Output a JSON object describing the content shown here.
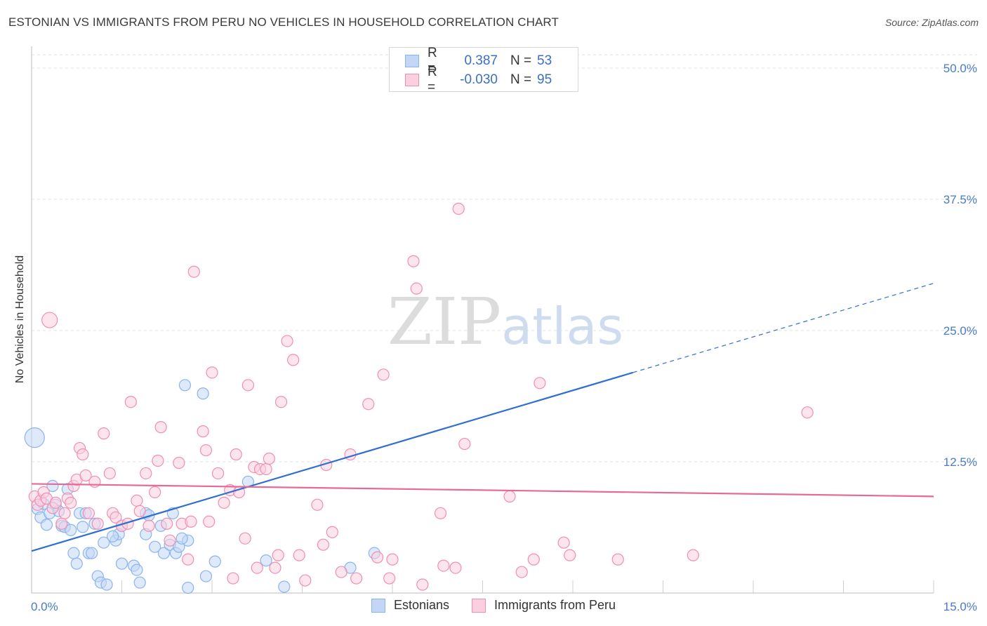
{
  "title": "ESTONIAN VS IMMIGRANTS FROM PERU NO VEHICLES IN HOUSEHOLD CORRELATION CHART",
  "source": "Source: ZipAtlas.com",
  "watermark": "ZIPatlas",
  "legend": {
    "rows": [
      {
        "r_label": "R =",
        "r_value": "0.387",
        "n_label": "N =",
        "n_value": "53",
        "color": "#8ab4ee",
        "fill": "#c3d7f5"
      },
      {
        "r_label": "R =",
        "r_value": "-0.030",
        "n_label": "N =",
        "n_value": "95",
        "color": "#f08fb0",
        "fill": "#fbd0de"
      }
    ]
  },
  "bottom_legend": [
    {
      "label": "Estonians",
      "color": "#8ab4ee",
      "fill": "#c3d7f5"
    },
    {
      "label": "Immigrants from Peru",
      "color": "#f08fb0",
      "fill": "#fbd0de"
    }
  ],
  "chart_data": {
    "type": "scatter",
    "title": "ESTONIAN VS IMMIGRANTS FROM PERU NO VEHICLES IN HOUSEHOLD CORRELATION CHART",
    "xlabel": "",
    "ylabel": "No Vehicles in Household",
    "xlim": [
      0,
      15
    ],
    "ylim": [
      0,
      50
    ],
    "x_ticks": [
      "0.0%",
      "15.0%"
    ],
    "y_ticks": [
      {
        "value": 12.5,
        "label": "12.5%"
      },
      {
        "value": 25.0,
        "label": "25.0%"
      },
      {
        "value": 37.5,
        "label": "37.5%"
      },
      {
        "value": 50.0,
        "label": "50.0%"
      }
    ],
    "grid": true,
    "series": [
      {
        "name": "Estonians",
        "color": "#8ab4ee",
        "fill": "#c3d7f5",
        "line_color": "#2f6fd0",
        "trend": {
          "x0": 0.0,
          "y0": 4.0,
          "x1": 15.0,
          "y1": 29.5,
          "solid_until": 10.0
        },
        "points": [
          [
            0.05,
            14.8,
            14
          ],
          [
            0.1,
            8.0,
            8
          ],
          [
            0.15,
            7.2,
            8
          ],
          [
            0.2,
            8.5,
            8
          ],
          [
            0.25,
            6.5,
            8
          ],
          [
            0.3,
            7.6,
            8
          ],
          [
            0.35,
            10.2,
            8
          ],
          [
            0.4,
            8.4,
            8
          ],
          [
            0.45,
            7.8,
            8
          ],
          [
            0.5,
            6.4,
            8
          ],
          [
            0.55,
            6.3,
            8
          ],
          [
            0.6,
            9.9,
            8
          ],
          [
            0.65,
            6.0,
            8
          ],
          [
            0.7,
            3.8,
            8
          ],
          [
            0.75,
            2.8,
            8
          ],
          [
            0.8,
            7.6,
            8
          ],
          [
            0.85,
            6.3,
            8
          ],
          [
            0.9,
            7.6,
            8
          ],
          [
            0.95,
            3.8,
            8
          ],
          [
            1.0,
            3.8,
            8
          ],
          [
            1.05,
            6.6,
            8
          ],
          [
            1.1,
            1.6,
            8
          ],
          [
            1.15,
            1.0,
            8
          ],
          [
            1.2,
            4.8,
            8
          ],
          [
            1.25,
            0.8,
            8
          ],
          [
            1.4,
            5.0,
            8
          ],
          [
            1.45,
            5.6,
            8
          ],
          [
            1.5,
            2.8,
            8
          ],
          [
            1.5,
            6.4,
            8
          ],
          [
            1.35,
            5.4,
            8
          ],
          [
            1.7,
            2.6,
            8
          ],
          [
            1.75,
            2.2,
            8
          ],
          [
            1.8,
            1.0,
            8
          ],
          [
            1.9,
            5.6,
            8
          ],
          [
            1.9,
            7.6,
            8
          ],
          [
            1.95,
            7.4,
            8
          ],
          [
            2.05,
            4.4,
            8
          ],
          [
            2.15,
            6.4,
            8
          ],
          [
            2.2,
            3.8,
            8
          ],
          [
            2.3,
            4.6,
            8
          ],
          [
            2.35,
            7.6,
            8
          ],
          [
            2.4,
            3.8,
            8
          ],
          [
            2.45,
            4.4,
            8
          ],
          [
            2.6,
            5.0,
            8
          ],
          [
            2.5,
            5.2,
            8
          ],
          [
            2.6,
            0.5,
            8
          ],
          [
            2.9,
            1.6,
            8
          ],
          [
            2.85,
            19.0,
            8
          ],
          [
            2.55,
            19.8,
            8
          ],
          [
            3.05,
            3.0,
            8
          ],
          [
            3.6,
            10.6,
            8
          ],
          [
            3.9,
            3.1,
            8
          ],
          [
            4.2,
            0.6,
            8
          ],
          [
            5.3,
            2.4,
            8
          ],
          [
            5.7,
            3.8,
            8
          ]
        ]
      },
      {
        "name": "Immigrants from Peru",
        "color": "#f08fb0",
        "fill": "#fbd0de",
        "line_color": "#e66a95",
        "trend": {
          "x0": 0.0,
          "y0": 10.4,
          "x1": 15.0,
          "y1": 9.2,
          "solid_until": 15.0
        },
        "points": [
          [
            0.05,
            9.2,
            8
          ],
          [
            0.1,
            8.4,
            8
          ],
          [
            0.15,
            8.8,
            8
          ],
          [
            0.2,
            9.6,
            8
          ],
          [
            0.25,
            9.0,
            8
          ],
          [
            0.3,
            26.0,
            11
          ],
          [
            0.35,
            8.1,
            8
          ],
          [
            0.4,
            8.6,
            8
          ],
          [
            0.5,
            6.6,
            8
          ],
          [
            0.55,
            7.6,
            8
          ],
          [
            0.6,
            9.0,
            8
          ],
          [
            0.65,
            8.6,
            8
          ],
          [
            0.7,
            10.2,
            8
          ],
          [
            0.75,
            10.8,
            8
          ],
          [
            0.8,
            13.8,
            8
          ],
          [
            0.85,
            13.2,
            8
          ],
          [
            0.9,
            11.2,
            8
          ],
          [
            0.95,
            7.6,
            8
          ],
          [
            1.05,
            10.6,
            8
          ],
          [
            1.1,
            6.6,
            8
          ],
          [
            1.2,
            15.2,
            8
          ],
          [
            1.3,
            11.4,
            8
          ],
          [
            1.35,
            7.6,
            8
          ],
          [
            1.4,
            7.2,
            8
          ],
          [
            1.5,
            6.4,
            8
          ],
          [
            1.6,
            6.6,
            8
          ],
          [
            1.65,
            18.2,
            8
          ],
          [
            1.75,
            8.8,
            8
          ],
          [
            1.8,
            7.8,
            8
          ],
          [
            1.9,
            11.4,
            8
          ],
          [
            1.95,
            6.4,
            8
          ],
          [
            2.05,
            9.6,
            8
          ],
          [
            2.1,
            12.6,
            8
          ],
          [
            2.15,
            15.8,
            8
          ],
          [
            2.25,
            6.6,
            8
          ],
          [
            2.3,
            5.0,
            8
          ],
          [
            2.45,
            12.4,
            8
          ],
          [
            2.5,
            6.6,
            8
          ],
          [
            2.6,
            3.2,
            8
          ],
          [
            2.65,
            6.8,
            8
          ],
          [
            2.7,
            30.6,
            8
          ],
          [
            2.85,
            15.4,
            8
          ],
          [
            2.9,
            13.6,
            8
          ],
          [
            2.95,
            6.8,
            8
          ],
          [
            3.0,
            21.0,
            8
          ],
          [
            3.1,
            11.4,
            8
          ],
          [
            3.2,
            8.6,
            8
          ],
          [
            3.3,
            9.8,
            8
          ],
          [
            3.35,
            1.4,
            8
          ],
          [
            3.4,
            13.2,
            8
          ],
          [
            3.45,
            9.6,
            8
          ],
          [
            3.55,
            5.2,
            8
          ],
          [
            3.6,
            19.8,
            8
          ],
          [
            3.7,
            12.0,
            8
          ],
          [
            3.75,
            2.4,
            8
          ],
          [
            3.8,
            11.8,
            8
          ],
          [
            3.9,
            11.8,
            8
          ],
          [
            3.95,
            12.8,
            8
          ],
          [
            4.05,
            2.4,
            8
          ],
          [
            4.1,
            3.6,
            8
          ],
          [
            4.15,
            18.2,
            8
          ],
          [
            4.25,
            24.0,
            8
          ],
          [
            4.35,
            22.2,
            8
          ],
          [
            4.45,
            3.6,
            8
          ],
          [
            4.55,
            1.2,
            8
          ],
          [
            4.75,
            8.4,
            8
          ],
          [
            4.85,
            4.6,
            8
          ],
          [
            4.9,
            12.2,
            8
          ],
          [
            5.0,
            5.8,
            8
          ],
          [
            5.15,
            2.0,
            8
          ],
          [
            5.3,
            13.2,
            8
          ],
          [
            5.4,
            1.4,
            8
          ],
          [
            5.6,
            18.0,
            8
          ],
          [
            5.75,
            3.4,
            8
          ],
          [
            5.85,
            20.8,
            8
          ],
          [
            5.95,
            1.4,
            8
          ],
          [
            6.0,
            3.2,
            8
          ],
          [
            6.35,
            31.6,
            8
          ],
          [
            6.4,
            29.0,
            8
          ],
          [
            6.5,
            0.8,
            8
          ],
          [
            6.8,
            7.6,
            8
          ],
          [
            6.85,
            2.6,
            8
          ],
          [
            7.05,
            2.4,
            8
          ],
          [
            7.1,
            36.6,
            8
          ],
          [
            7.2,
            14.2,
            8
          ],
          [
            7.95,
            9.2,
            8
          ],
          [
            8.15,
            2.0,
            8
          ],
          [
            8.35,
            3.2,
            8
          ],
          [
            8.45,
            20.0,
            8
          ],
          [
            8.85,
            4.8,
            8
          ],
          [
            8.95,
            3.6,
            8
          ],
          [
            9.75,
            3.2,
            8
          ],
          [
            11.0,
            3.6,
            8
          ],
          [
            12.9,
            17.2,
            8
          ]
        ]
      }
    ]
  }
}
